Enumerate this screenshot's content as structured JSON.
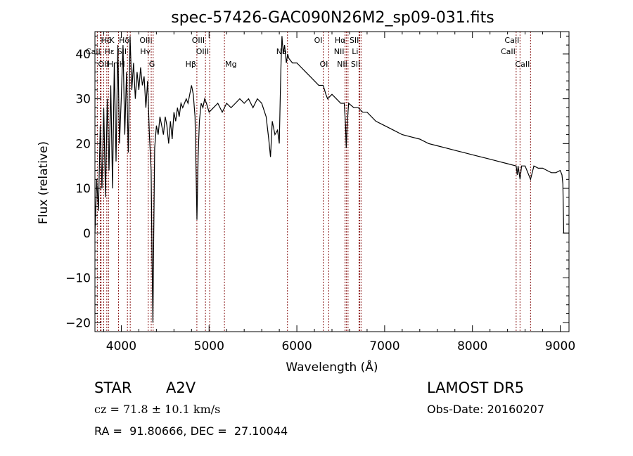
{
  "chart_data": {
    "type": "line",
    "title": "spec-57426-GAC090N26M2_sp09-031.fits",
    "xlabel": "Wavelength (Å)",
    "ylabel": "Flux (relative)",
    "xlim": [
      3700,
      9100
    ],
    "ylim": [
      -22,
      45
    ],
    "xticks": [
      4000,
      5000,
      6000,
      7000,
      8000,
      9000
    ],
    "yticks": [
      -20,
      -10,
      0,
      10,
      20,
      30,
      40
    ],
    "grid": false,
    "series": [
      {
        "points": [
          [
            3700,
            0
          ],
          [
            3720,
            12
          ],
          [
            3740,
            5
          ],
          [
            3760,
            24
          ],
          [
            3780,
            10
          ],
          [
            3800,
            28
          ],
          [
            3820,
            8
          ],
          [
            3840,
            30
          ],
          [
            3860,
            14
          ],
          [
            3880,
            33
          ],
          [
            3900,
            10
          ],
          [
            3920,
            38
          ],
          [
            3940,
            16
          ],
          [
            3960,
            42
          ],
          [
            3980,
            20
          ],
          [
            4000,
            30
          ],
          [
            4020,
            42
          ],
          [
            4040,
            22
          ],
          [
            4060,
            36
          ],
          [
            4080,
            18
          ],
          [
            4100,
            44
          ],
          [
            4120,
            32
          ],
          [
            4140,
            38
          ],
          [
            4160,
            30
          ],
          [
            4180,
            36
          ],
          [
            4200,
            32
          ],
          [
            4220,
            37
          ],
          [
            4240,
            33
          ],
          [
            4260,
            35
          ],
          [
            4280,
            28
          ],
          [
            4300,
            34
          ],
          [
            4320,
            22
          ],
          [
            4340,
            14
          ],
          [
            4350,
            -5
          ],
          [
            4360,
            -20
          ],
          [
            4370,
            0
          ],
          [
            4380,
            19
          ],
          [
            4400,
            24
          ],
          [
            4420,
            22
          ],
          [
            4440,
            26
          ],
          [
            4460,
            24
          ],
          [
            4480,
            22
          ],
          [
            4500,
            26
          ],
          [
            4520,
            24
          ],
          [
            4540,
            20
          ],
          [
            4560,
            25
          ],
          [
            4580,
            21
          ],
          [
            4600,
            27
          ],
          [
            4620,
            25
          ],
          [
            4640,
            28
          ],
          [
            4660,
            26
          ],
          [
            4680,
            29
          ],
          [
            4700,
            28
          ],
          [
            4720,
            29
          ],
          [
            4740,
            30
          ],
          [
            4760,
            29
          ],
          [
            4780,
            31
          ],
          [
            4800,
            33
          ],
          [
            4820,
            31
          ],
          [
            4840,
            26
          ],
          [
            4850,
            16
          ],
          [
            4862,
            3
          ],
          [
            4875,
            17
          ],
          [
            4890,
            25
          ],
          [
            4910,
            29
          ],
          [
            4930,
            28
          ],
          [
            4950,
            30
          ],
          [
            4970,
            29
          ],
          [
            5000,
            27
          ],
          [
            5050,
            28
          ],
          [
            5100,
            29
          ],
          [
            5150,
            27
          ],
          [
            5200,
            29
          ],
          [
            5250,
            28
          ],
          [
            5300,
            29
          ],
          [
            5350,
            30
          ],
          [
            5400,
            29
          ],
          [
            5450,
            30
          ],
          [
            5500,
            28
          ],
          [
            5550,
            30
          ],
          [
            5600,
            29
          ],
          [
            5650,
            26
          ],
          [
            5680,
            21
          ],
          [
            5700,
            17
          ],
          [
            5720,
            25
          ],
          [
            5750,
            22
          ],
          [
            5780,
            23
          ],
          [
            5800,
            20
          ],
          [
            5810,
            30
          ],
          [
            5820,
            38
          ],
          [
            5830,
            44
          ],
          [
            5845,
            40
          ],
          [
            5860,
            42
          ],
          [
            5880,
            38
          ],
          [
            5895,
            40
          ],
          [
            5910,
            39
          ],
          [
            5950,
            38
          ],
          [
            6000,
            38
          ],
          [
            6050,
            37
          ],
          [
            6100,
            36
          ],
          [
            6150,
            35
          ],
          [
            6200,
            34
          ],
          [
            6250,
            33
          ],
          [
            6300,
            33
          ],
          [
            6330,
            31
          ],
          [
            6350,
            30
          ],
          [
            6400,
            31
          ],
          [
            6450,
            30
          ],
          [
            6500,
            29
          ],
          [
            6540,
            29
          ],
          [
            6555,
            24
          ],
          [
            6563,
            19
          ],
          [
            6572,
            24
          ],
          [
            6590,
            29
          ],
          [
            6650,
            28
          ],
          [
            6700,
            28
          ],
          [
            6750,
            27
          ],
          [
            6800,
            27
          ],
          [
            6900,
            25
          ],
          [
            7000,
            24
          ],
          [
            7100,
            23
          ],
          [
            7200,
            22
          ],
          [
            7300,
            21.5
          ],
          [
            7400,
            21
          ],
          [
            7500,
            20
          ],
          [
            7600,
            19.5
          ],
          [
            7700,
            19
          ],
          [
            7800,
            18.5
          ],
          [
            7900,
            18
          ],
          [
            8000,
            17.5
          ],
          [
            8100,
            17
          ],
          [
            8200,
            16.5
          ],
          [
            8300,
            16
          ],
          [
            8400,
            15.5
          ],
          [
            8498,
            15
          ],
          [
            8510,
            13
          ],
          [
            8520,
            15
          ],
          [
            8542,
            12
          ],
          [
            8560,
            15
          ],
          [
            8600,
            15
          ],
          [
            8662,
            12
          ],
          [
            8700,
            15
          ],
          [
            8750,
            14.5
          ],
          [
            8800,
            14.5
          ],
          [
            8850,
            14
          ],
          [
            8900,
            13.5
          ],
          [
            8950,
            13.5
          ],
          [
            9000,
            14
          ],
          [
            9020,
            13
          ],
          [
            9030,
            11
          ],
          [
            9040,
            0
          ],
          [
            9050,
            0
          ],
          [
            9060,
            0
          ],
          [
            9080,
            0
          ],
          [
            9100,
            0
          ]
        ]
      }
    ],
    "line_color": "#000000",
    "marker_color": "#8b1a1a",
    "lines": [
      {
        "label": "Hδ",
        "x": 3760,
        "row": 1,
        "align": "left"
      },
      {
        "label": "CaII",
        "x": 3770,
        "row": 2,
        "align": "right"
      },
      {
        "label": "OII",
        "x": 3727,
        "row": 3,
        "align": "left"
      },
      {
        "label": "Hε",
        "x": 3800,
        "row": 2,
        "align": "left"
      },
      {
        "label": "K",
        "x": 3855,
        "row": 1,
        "align": "left"
      },
      {
        "label": "Hη",
        "x": 3835,
        "row": 3,
        "align": "left"
      },
      {
        "label": "H",
        "x": 3968,
        "row": 3,
        "align": "left"
      },
      {
        "label": "Hδ",
        "x": 4102,
        "row": 1,
        "align": "right"
      },
      {
        "label": "SII",
        "x": 4070,
        "row": 2,
        "align": "right"
      },
      {
        "label": "OIII",
        "x": 4363,
        "row": 1,
        "align": "right"
      },
      {
        "label": "Hγ",
        "x": 4341,
        "row": 2,
        "align": "right"
      },
      {
        "label": "G",
        "x": 4307,
        "row": 3,
        "align": "left"
      },
      {
        "label": "Hβ",
        "x": 4861,
        "row": 3,
        "align": "right"
      },
      {
        "label": "OIII",
        "x": 4959,
        "row": 1,
        "align": "right"
      },
      {
        "label": "OIII",
        "x": 5007,
        "row": 2,
        "align": "right"
      },
      {
        "label": "Mg",
        "x": 5175,
        "row": 3,
        "align": "left"
      },
      {
        "label": "Na",
        "x": 5893,
        "row": 2,
        "align": "right"
      },
      {
        "label": "OI",
        "x": 6300,
        "row": 1,
        "align": "right"
      },
      {
        "label": "OI",
        "x": 6363,
        "row": 3,
        "align": "right"
      },
      {
        "label": "Hα",
        "x": 6563,
        "row": 1,
        "align": "right"
      },
      {
        "label": "NII",
        "x": 6548,
        "row": 2,
        "align": "right"
      },
      {
        "label": "NII",
        "x": 6583,
        "row": 3,
        "align": "right"
      },
      {
        "label": "SII",
        "x": 6716,
        "row": 1,
        "align": "right"
      },
      {
        "label": "Li",
        "x": 6708,
        "row": 2,
        "align": "right"
      },
      {
        "label": "SII",
        "x": 6731,
        "row": 3,
        "align": "right"
      },
      {
        "label": "CaII",
        "x": 8498,
        "row": 2,
        "align": "right"
      },
      {
        "label": "CaII",
        "x": 8542,
        "row": 1,
        "align": "right"
      },
      {
        "label": "CaII",
        "x": 8662,
        "row": 3,
        "align": "right"
      }
    ]
  },
  "info": {
    "class": "STAR",
    "subclass": "A2V",
    "survey": "LAMOST DR5",
    "cz": "cz = 71.8 ± 10.1 km/s",
    "obs_date": "Obs-Date: 20160207",
    "coords": "RA =  91.80666, DEC =  27.10044"
  }
}
